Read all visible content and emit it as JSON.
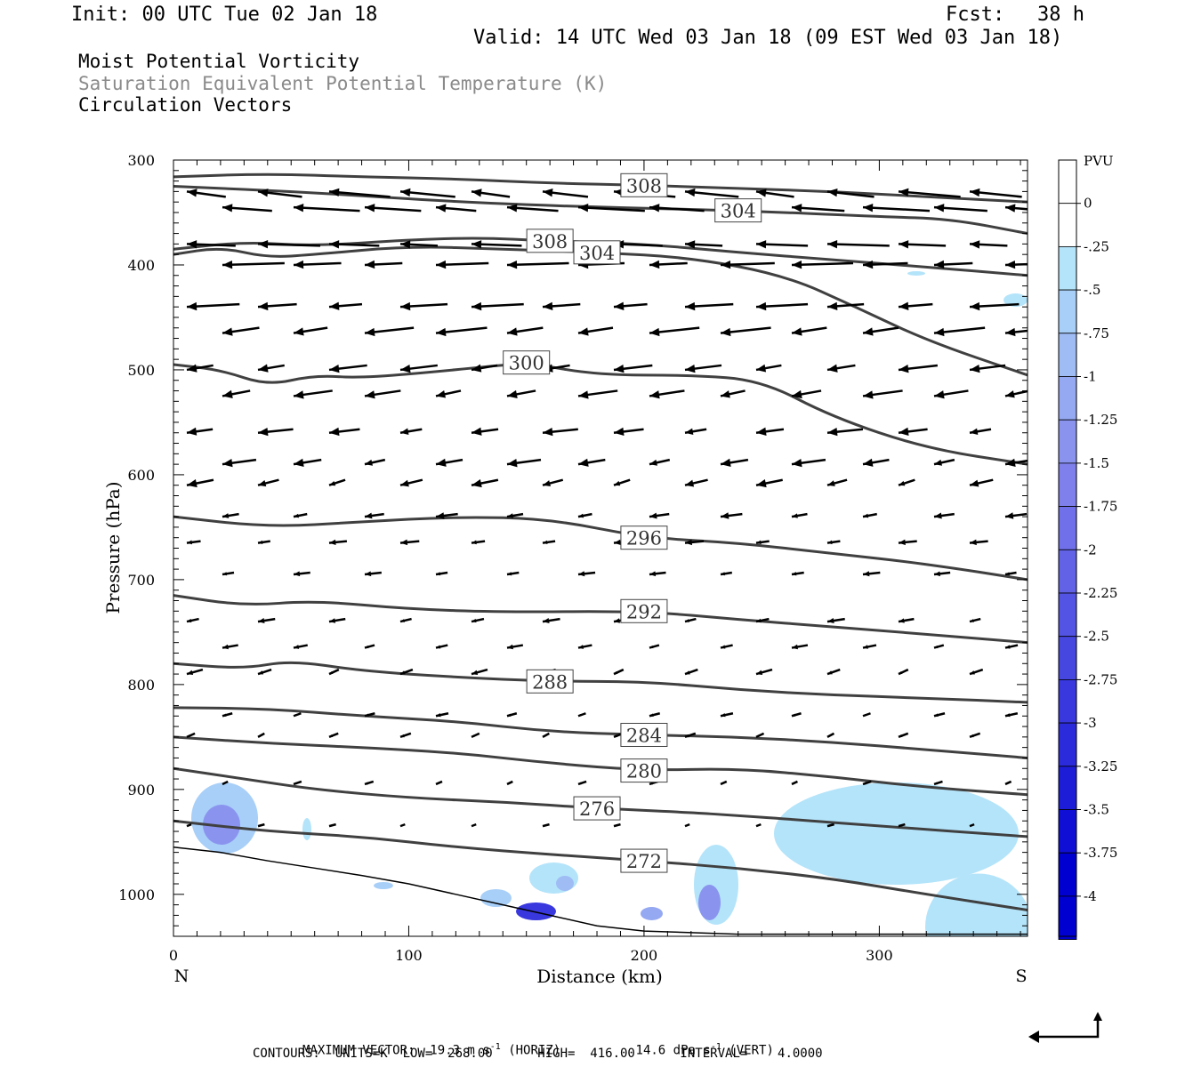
{
  "header": {
    "init": "Init: 00 UTC Tue 02 Jan 18",
    "fcst_label": "Fcst:",
    "fcst_value": "38 h",
    "valid": "Valid: 14 UTC Wed 03 Jan 18 (09 EST Wed 03 Jan 18)"
  },
  "fields": {
    "pv": "Moist Potential Vorticity",
    "theta": "Saturation Equivalent Potential Temperature (K)",
    "vectors": "Circulation Vectors"
  },
  "footer": {
    "max_vector_prefix": "MAXIMUM VECTOR:  19.3 m s",
    "max_vector_horiz": "(HORIZ)",
    "max_vector_vert_prefix": "14.6 dPa s",
    "max_vector_vert": "(VERT)",
    "superscript": "-1",
    "contours": "CONTOURS:  UNITS=K  LOW=  268.00      HIGH=  416.00      INTERVAL=    4.0000"
  },
  "colors": {
    "contour": "#404040",
    "vector": "#000000",
    "pv_shades": [
      "#ffffff",
      "#ffffff",
      "#b4e4fa",
      "#a8cff8",
      "#9fbcf5",
      "#95a8f2",
      "#8a94ef",
      "#8080ec",
      "#7070ea",
      "#6262e7",
      "#5454e4",
      "#4646e1",
      "#3838de",
      "#2b2bdb",
      "#1d1dd8",
      "#0f0fd5",
      "#0000d0"
    ]
  },
  "chart_data": {
    "type": "contour",
    "xlabel": "Distance (km)",
    "ylabel": "Pressure (hPa)",
    "xlim": [
      0,
      363
    ],
    "ylim": [
      1040,
      300
    ],
    "xticks": [
      "0",
      "100",
      "200",
      "300"
    ],
    "xtick_values": [
      0,
      100,
      200,
      300
    ],
    "yticks": [
      "300",
      "400",
      "500",
      "600",
      "700",
      "800",
      "900",
      "1000"
    ],
    "ytick_values": [
      300,
      400,
      500,
      600,
      700,
      800,
      900,
      1000
    ],
    "x_ends": {
      "left": "N",
      "right": "S"
    },
    "colorbar": {
      "unit": "PVU",
      "labels": [
        "0",
        "-.25",
        "-.5",
        "-.75",
        "-1",
        "-1.25",
        "-1.5",
        "-1.75",
        "-2",
        "-2.25",
        "-2.5",
        "-2.75",
        "-3",
        "-3.25",
        "-3.5",
        "-3.75",
        "-4"
      ]
    },
    "theta_contours": [
      {
        "level": "308",
        "points": [
          [
            0,
            316
          ],
          [
            40,
            313
          ],
          [
            80,
            316
          ],
          [
            120,
            318
          ],
          [
            160,
            322
          ],
          [
            200,
            324
          ],
          [
            240,
            327
          ],
          [
            280,
            330
          ],
          [
            320,
            335
          ],
          [
            363,
            340
          ]
        ]
      },
      {
        "level": "308",
        "points": [
          [
            0,
            385
          ],
          [
            30,
            378
          ],
          [
            60,
            382
          ],
          [
            100,
            376
          ],
          [
            130,
            374
          ],
          [
            160,
            377
          ],
          [
            200,
            380
          ],
          [
            240,
            388
          ],
          [
            280,
            395
          ],
          [
            320,
            402
          ],
          [
            363,
            410
          ]
        ]
      },
      {
        "level": "304",
        "points": [
          [
            0,
            325
          ],
          [
            60,
            331
          ],
          [
            120,
            340
          ],
          [
            180,
            345
          ],
          [
            240,
            348
          ],
          [
            300,
            354
          ],
          [
            330,
            356
          ],
          [
            363,
            370
          ]
        ]
      },
      {
        "level": "304",
        "points": [
          [
            0,
            390
          ],
          [
            20,
            383
          ],
          [
            40,
            393
          ],
          [
            60,
            390
          ],
          [
            100,
            382
          ],
          [
            140,
            385
          ],
          [
            180,
            388
          ],
          [
            220,
            393
          ],
          [
            260,
            410
          ],
          [
            290,
            440
          ],
          [
            320,
            472
          ],
          [
            363,
            505
          ]
        ]
      },
      {
        "level": "300",
        "points": [
          [
            0,
            495
          ],
          [
            20,
            500
          ],
          [
            40,
            515
          ],
          [
            60,
            505
          ],
          [
            80,
            508
          ],
          [
            120,
            500
          ],
          [
            150,
            493
          ],
          [
            180,
            505
          ],
          [
            220,
            505
          ],
          [
            250,
            510
          ],
          [
            280,
            545
          ],
          [
            320,
            575
          ],
          [
            363,
            590
          ]
        ]
      },
      {
        "level": "296",
        "points": [
          [
            0,
            640
          ],
          [
            40,
            650
          ],
          [
            80,
            645
          ],
          [
            120,
            640
          ],
          [
            160,
            642
          ],
          [
            200,
            660
          ],
          [
            240,
            665
          ],
          [
            280,
            675
          ],
          [
            320,
            685
          ],
          [
            363,
            700
          ]
        ]
      },
      {
        "level": "292",
        "points": [
          [
            0,
            715
          ],
          [
            30,
            725
          ],
          [
            60,
            720
          ],
          [
            100,
            728
          ],
          [
            140,
            731
          ],
          [
            200,
            730
          ],
          [
            240,
            738
          ],
          [
            280,
            745
          ],
          [
            320,
            752
          ],
          [
            363,
            760
          ]
        ]
      },
      {
        "level": "288",
        "points": [
          [
            0,
            780
          ],
          [
            30,
            785
          ],
          [
            50,
            777
          ],
          [
            80,
            787
          ],
          [
            120,
            793
          ],
          [
            160,
            797
          ],
          [
            200,
            797
          ],
          [
            240,
            805
          ],
          [
            280,
            810
          ],
          [
            320,
            813
          ],
          [
            363,
            817
          ]
        ]
      },
      {
        "level": "284",
        "points": [
          [
            0,
            822
          ],
          [
            40,
            823
          ],
          [
            80,
            830
          ],
          [
            120,
            835
          ],
          [
            160,
            845
          ],
          [
            200,
            848
          ],
          [
            240,
            850
          ],
          [
            280,
            855
          ],
          [
            320,
            862
          ],
          [
            363,
            870
          ]
        ]
      },
      {
        "level": "280",
        "points": [
          [
            0,
            850
          ],
          [
            40,
            856
          ],
          [
            80,
            860
          ],
          [
            120,
            865
          ],
          [
            160,
            875
          ],
          [
            200,
            882
          ],
          [
            240,
            880
          ],
          [
            280,
            888
          ],
          [
            320,
            898
          ],
          [
            363,
            905
          ]
        ]
      },
      {
        "level": "276",
        "points": [
          [
            0,
            880
          ],
          [
            30,
            890
          ],
          [
            60,
            900
          ],
          [
            100,
            908
          ],
          [
            140,
            912
          ],
          [
            180,
            918
          ],
          [
            220,
            922
          ],
          [
            240,
            925
          ],
          [
            260,
            928
          ],
          [
            300,
            935
          ],
          [
            363,
            945
          ]
        ]
      },
      {
        "level": "272",
        "points": [
          [
            0,
            930
          ],
          [
            40,
            940
          ],
          [
            80,
            945
          ],
          [
            120,
            955
          ],
          [
            160,
            962
          ],
          [
            200,
            968
          ],
          [
            240,
            975
          ],
          [
            280,
            985
          ],
          [
            320,
            1000
          ],
          [
            363,
            1015
          ]
        ]
      }
    ],
    "vector_rows": [
      {
        "pressure": 330,
        "u": [
          -1,
          -1,
          -1,
          -1,
          -1,
          -1,
          -1,
          -1,
          -1,
          -1,
          -1,
          -1
        ]
      },
      {
        "pressure": 350,
        "u": [
          -1,
          -1,
          -1,
          -1,
          -1,
          -1,
          -1,
          -1,
          -1,
          -1,
          -1,
          -1
        ]
      }
    ]
  }
}
